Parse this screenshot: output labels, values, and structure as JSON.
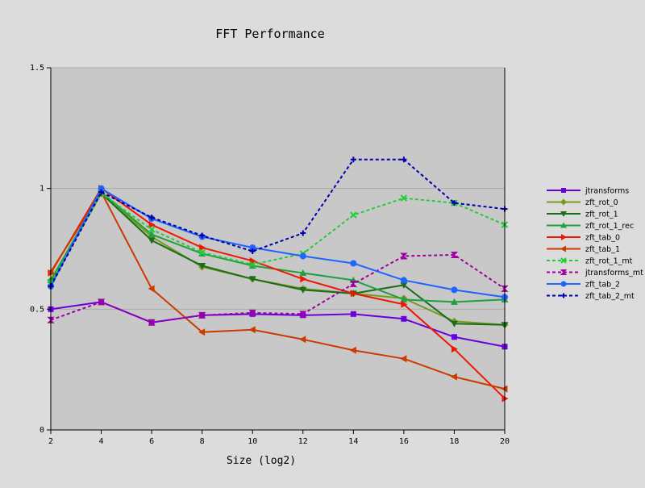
{
  "chart_data": {
    "type": "line",
    "title": "FFT Performance",
    "xlabel": "Size (log2)",
    "ylabel": "",
    "x": [
      2,
      4,
      6,
      8,
      10,
      12,
      14,
      16,
      18,
      20
    ],
    "xlim": [
      2,
      20
    ],
    "ylim": [
      0,
      1.5
    ],
    "x_ticks": [
      "2",
      "4",
      "6",
      "8",
      "10",
      "12",
      "14",
      "16",
      "18",
      "20"
    ],
    "y_ticks": [
      {
        "value": 0,
        "label": "0"
      },
      {
        "value": 0.5,
        "label": "0.5"
      },
      {
        "value": 1,
        "label": "1"
      },
      {
        "value": 1.5,
        "label": "1.5"
      }
    ],
    "grid": "horizontal",
    "plot_background": "#c8c8c8",
    "page_background": "#dcdcdc",
    "legend_position": "right",
    "series": [
      {
        "name": "jtransforms",
        "color": "#6a00e0",
        "dash": "solid",
        "marker": "square",
        "values": [
          0.5,
          0.53,
          0.445,
          0.475,
          0.48,
          0.475,
          0.48,
          0.46,
          0.385,
          0.345
        ]
      },
      {
        "name": "zft_rot_0",
        "color": "#7a9a1e",
        "dash": "solid",
        "marker": "diamond",
        "values": [
          0.62,
          0.98,
          0.8,
          0.675,
          0.625,
          0.585,
          0.565,
          0.545,
          0.45,
          0.435
        ]
      },
      {
        "name": "zft_rot_1",
        "color": "#1a6e1a",
        "dash": "solid",
        "marker": "triangle-down",
        "values": [
          0.61,
          0.98,
          0.785,
          0.68,
          0.625,
          0.58,
          0.565,
          0.6,
          0.44,
          0.435
        ]
      },
      {
        "name": "zft_rot_1_rec",
        "color": "#20a040",
        "dash": "solid",
        "marker": "triangle-up",
        "values": [
          0.62,
          0.985,
          0.81,
          0.73,
          0.68,
          0.65,
          0.62,
          0.54,
          0.53,
          0.54
        ]
      },
      {
        "name": "zft_tab_0",
        "color": "#ee1800",
        "dash": "solid",
        "marker": "triangle-right",
        "values": [
          0.65,
          1.0,
          0.85,
          0.755,
          0.7,
          0.625,
          0.565,
          0.52,
          0.335,
          0.13
        ]
      },
      {
        "name": "zft_tab_1",
        "color": "#cc3a00",
        "dash": "solid",
        "marker": "triangle-left",
        "values": [
          0.655,
          0.985,
          0.585,
          0.405,
          0.415,
          0.375,
          0.33,
          0.295,
          0.22,
          0.17
        ]
      },
      {
        "name": "zft_rot_1_mt",
        "color": "#22cc33",
        "dash": "dashed",
        "marker": "x",
        "values": [
          0.61,
          0.98,
          0.83,
          0.735,
          0.685,
          0.73,
          0.89,
          0.96,
          0.94,
          0.85
        ]
      },
      {
        "name": "jtransforms_mt",
        "color": "#a000a0",
        "dash": "dashed",
        "marker": "hourglass",
        "values": [
          0.455,
          0.53,
          0.445,
          0.475,
          0.485,
          0.48,
          0.605,
          0.72,
          0.725,
          0.585
        ]
      },
      {
        "name": "zft_tab_2",
        "color": "#1e64ff",
        "dash": "solid",
        "marker": "circle",
        "values": [
          0.595,
          1.0,
          0.875,
          0.8,
          0.755,
          0.72,
          0.69,
          0.62,
          0.58,
          0.55
        ]
      },
      {
        "name": "zft_tab_2_mt",
        "color": "#0000aa",
        "dash": "dashed",
        "marker": "plus",
        "values": [
          0.595,
          0.985,
          0.88,
          0.805,
          0.74,
          0.815,
          1.12,
          1.12,
          0.94,
          0.915
        ]
      }
    ]
  }
}
